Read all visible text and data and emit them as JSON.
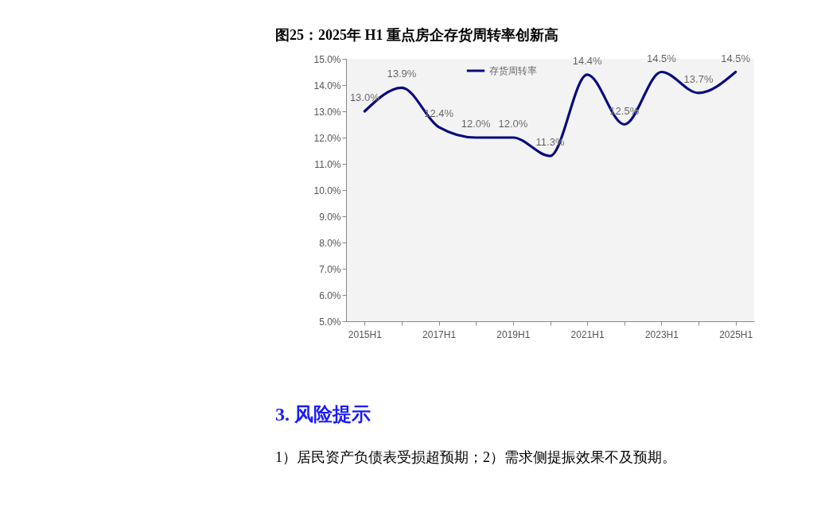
{
  "chart_data": {
    "type": "line",
    "title": "图25：2025年 H1 重点房企存货周转率创新高",
    "categories": [
      "2015H1",
      null,
      "2017H1",
      null,
      "2019H1",
      null,
      "2021H1",
      null,
      "2023H1",
      null,
      "2025H1"
    ],
    "series": [
      {
        "name": "存货周转率",
        "color": "#0a0a80",
        "values": [
          13.0,
          13.9,
          12.4,
          12.0,
          12.0,
          11.3,
          14.4,
          12.5,
          14.5,
          13.7,
          14.5
        ],
        "value_labels": [
          "13.0%",
          "13.9%",
          "12.4%",
          "12.0%",
          "12.0%",
          "11.3%",
          "14.4%",
          "12.5%",
          "14.5%",
          "13.7%",
          "14.5%"
        ]
      }
    ],
    "ylim": [
      5,
      15
    ],
    "yticks": [
      {
        "value": 5,
        "label": "5.0%"
      },
      {
        "value": 6,
        "label": "6.0%"
      },
      {
        "value": 7,
        "label": "7.0%"
      },
      {
        "value": 8,
        "label": "8.0%"
      },
      {
        "value": 9,
        "label": "9.0%"
      },
      {
        "value": 10,
        "label": "10.0%"
      },
      {
        "value": 11,
        "label": "11.0%"
      },
      {
        "value": 12,
        "label": "12.0%"
      },
      {
        "value": 13,
        "label": "13.0%"
      },
      {
        "value": 14,
        "label": "14.0%"
      },
      {
        "value": 15,
        "label": "15.0%"
      }
    ],
    "grid": false,
    "legend": "top",
    "marker": "none",
    "line_style": "solid",
    "annotations": [
      "3.  风险提示",
      "1）居民资产负债表受损超预期；2）需求侧提振效果不及预期。"
    ]
  }
}
